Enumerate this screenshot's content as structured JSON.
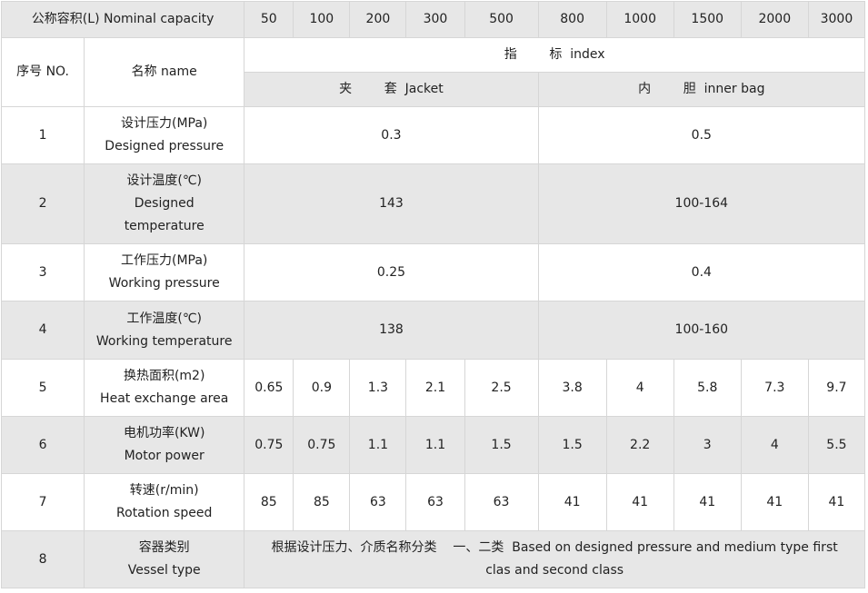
{
  "header": {
    "capacity_label": "公称容积(L) Nominal capacity",
    "capacities": [
      "50",
      "100",
      "200",
      "300",
      "500",
      "800",
      "1000",
      "1500",
      "2000",
      "3000"
    ],
    "no_label": "序号 NO.",
    "name_label": "名称  name",
    "index_label": "指        标  index",
    "jacket_label": "夹        套  Jacket",
    "inner_label": "内        胆  inner bag"
  },
  "rows": [
    {
      "no": "1",
      "name_cn": "设计压力(MPa)",
      "name_en": "Designed pressure",
      "jacket": "0.3",
      "inner": "0.5"
    },
    {
      "no": "2",
      "name_cn": "设计温度(℃)",
      "name_en": "Designed",
      "name_en2": "temperature",
      "jacket": "143",
      "inner": "100-164"
    },
    {
      "no": "3",
      "name_cn": "工作压力(MPa)",
      "name_en": "Working pressure",
      "jacket": "0.25",
      "inner": "0.4"
    },
    {
      "no": "4",
      "name_cn": "工作温度(℃)",
      "name_en": "Working temperature",
      "jacket": "138",
      "inner": "100-160"
    },
    {
      "no": "5",
      "name_cn": "换热面积(m2)",
      "name_en": "Heat exchange area",
      "values": [
        "0.65",
        "0.9",
        "1.3",
        "2.1",
        "2.5",
        "3.8",
        "4",
        "5.8",
        "7.3",
        "9.7"
      ]
    },
    {
      "no": "6",
      "name_cn": "电机功率(KW)",
      "name_en": "Motor power",
      "values": [
        "0.75",
        "0.75",
        "1.1",
        "1.1",
        "1.5",
        "1.5",
        "2.2",
        "3",
        "4",
        "5.5"
      ]
    },
    {
      "no": "7",
      "name_cn": "转速(r/min)",
      "name_en": "Rotation speed",
      "values": [
        "85",
        "85",
        "63",
        "63",
        "63",
        "41",
        "41",
        "41",
        "41",
        "41"
      ]
    },
    {
      "no": "8",
      "name_cn": "容器类别",
      "name_en": "Vessel type",
      "text1": "根据设计压力、介质名称分类    一、二类  Based on designed pressure and medium type first",
      "text2": "clas and second class"
    }
  ]
}
